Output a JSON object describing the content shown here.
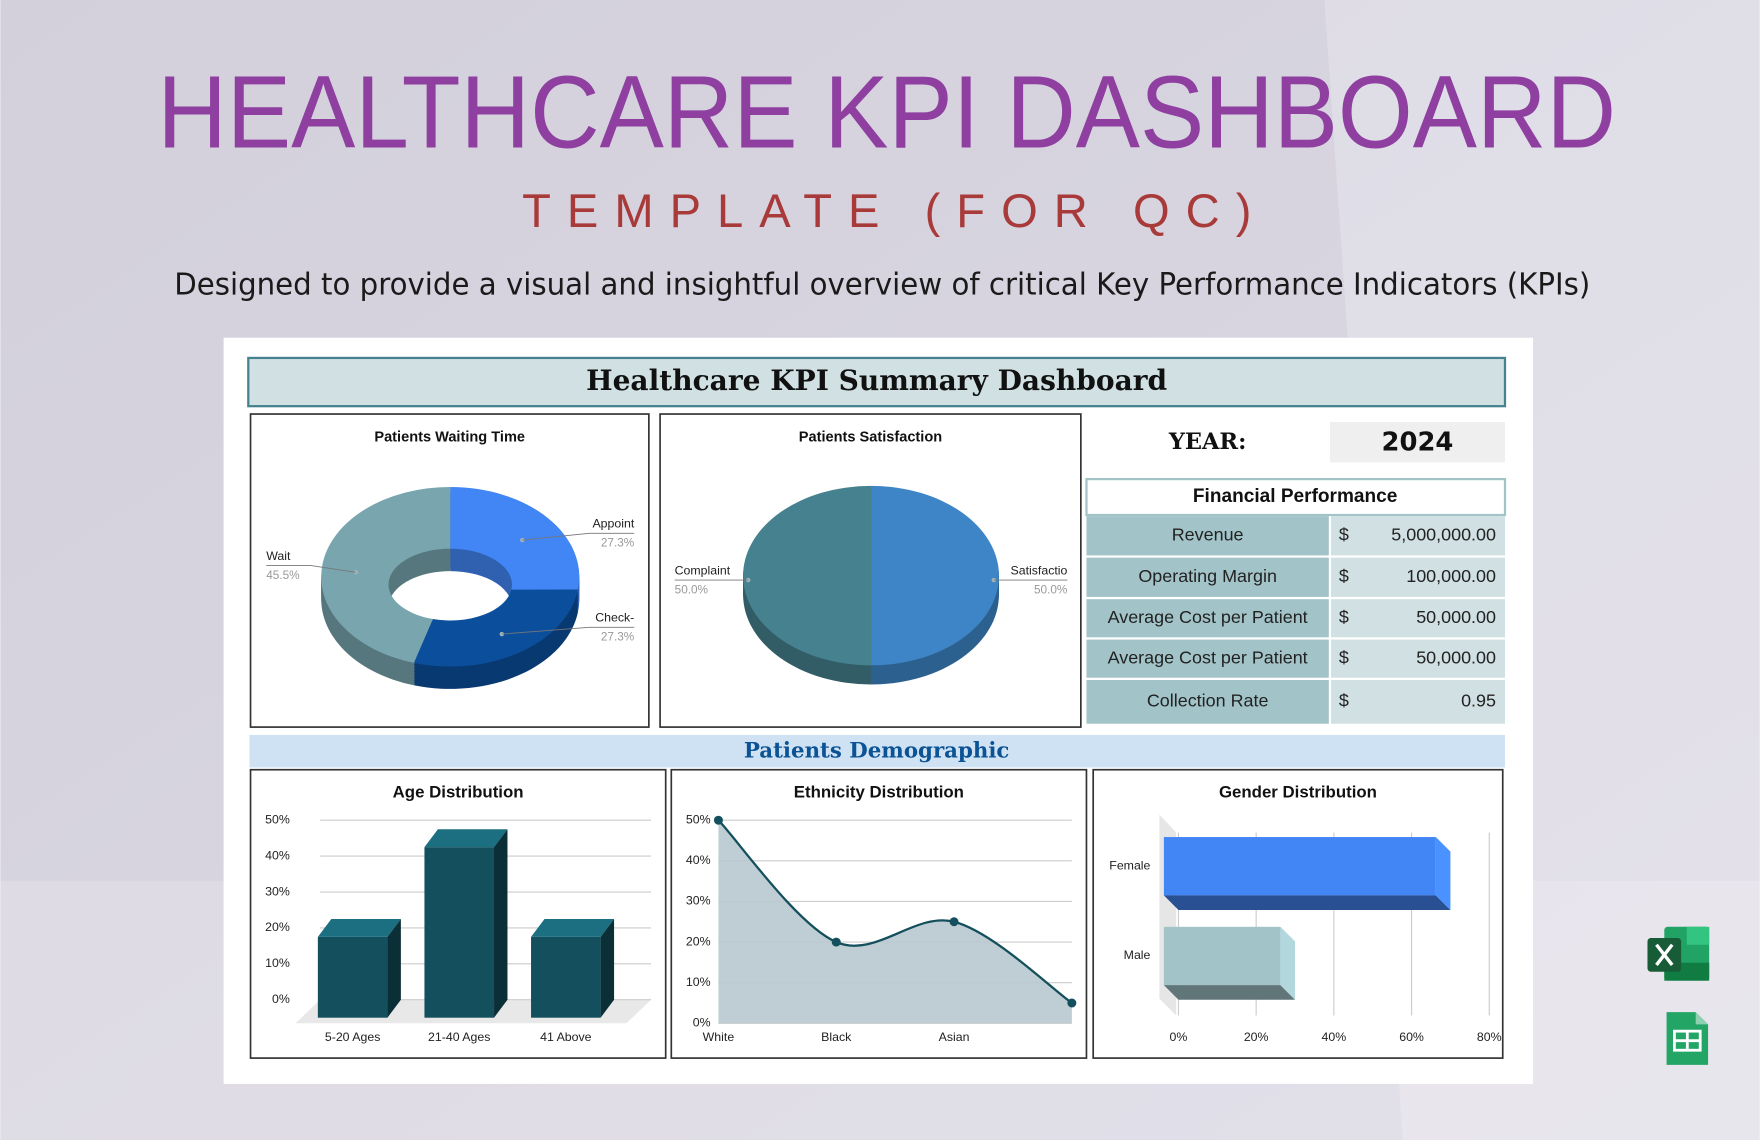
{
  "header": {
    "title": "HEALTHCARE KPI DASHBOARD",
    "subtitle": "TEMPLATE (FOR QC)",
    "description": "Designed to provide a visual and insightful overview of critical Key Performance Indicators (KPIs)"
  },
  "dashboard": {
    "title": "Healthcare KPI Summary Dashboard",
    "year_label": "YEAR:",
    "year": "2024",
    "section": "Patients Demographic"
  },
  "financial": {
    "title": "Financial Performance",
    "rows": [
      [
        "Revenue",
        "$",
        "5,000,000.00"
      ],
      [
        "Operating Margin",
        "$",
        "100,000.00"
      ],
      [
        "Average Cost per Patient",
        "$",
        "50,000.00"
      ],
      [
        "Average Cost per Patient",
        "$",
        "50,000.00"
      ],
      [
        "Collection Rate",
        "$",
        "0.95"
      ]
    ]
  },
  "chart_data": [
    {
      "type": "pie",
      "title": "Patients Waiting Time",
      "donut": true,
      "categories": [
        "Appoint",
        "Check-",
        "Wait"
      ],
      "values": [
        27.3,
        27.3,
        45.5
      ],
      "value_labels": [
        "27.3%",
        "27.3%",
        "45.5%"
      ],
      "colors": [
        "#4285f4",
        "#0b4f9c",
        "#78a5ae"
      ]
    },
    {
      "type": "pie",
      "title": "Patients Satisfaction",
      "categories": [
        "Satisfactio",
        "Complaint"
      ],
      "values": [
        50,
        50
      ],
      "value_labels": [
        "50.0%",
        "50.0%"
      ],
      "colors": [
        "#3d85c6",
        "#45818e"
      ]
    },
    {
      "type": "bar",
      "title": "Age Distribution",
      "categories": [
        "5-20 Ages",
        "21-40 Ages",
        "41 Above"
      ],
      "values": [
        20,
        45,
        20
      ],
      "color": "#134f5c",
      "ylim": [
        0,
        50
      ],
      "yticks": [
        {
          "value": 0,
          "label": "0%"
        },
        {
          "value": 10,
          "label": "10%"
        },
        {
          "value": 20,
          "label": "20%"
        },
        {
          "value": 30,
          "label": "30%"
        },
        {
          "value": 40,
          "label": "40%"
        },
        {
          "value": 50,
          "label": "50%"
        }
      ],
      "grid": true
    },
    {
      "type": "area",
      "title": "Ethnicity Distribution",
      "categories": [
        "White",
        "Black",
        "Asian",
        null
      ],
      "values": [
        50,
        20,
        25,
        5
      ],
      "color": "#134f5c",
      "ylim": [
        0,
        50
      ],
      "yticks": [
        {
          "value": 0,
          "label": "0%"
        },
        {
          "value": 10,
          "label": "10%"
        },
        {
          "value": 20,
          "label": "20%"
        },
        {
          "value": 30,
          "label": "30%"
        },
        {
          "value": 40,
          "label": "40%"
        },
        {
          "value": 50,
          "label": "50%"
        }
      ],
      "grid": true
    },
    {
      "type": "bar",
      "title": "Gender Distribution",
      "horizontal": true,
      "categories": [
        "Female",
        "Male"
      ],
      "values": [
        70,
        30
      ],
      "colors": [
        "#4285f4",
        "#a2c4c9"
      ],
      "xlim": [
        0,
        80
      ],
      "xticks": [
        {
          "value": 0,
          "label": "0%"
        },
        {
          "value": 20,
          "label": "20%"
        },
        {
          "value": 40,
          "label": "40%"
        },
        {
          "value": 60,
          "label": "60%"
        },
        {
          "value": 80,
          "label": "80%"
        }
      ],
      "grid": true
    }
  ]
}
